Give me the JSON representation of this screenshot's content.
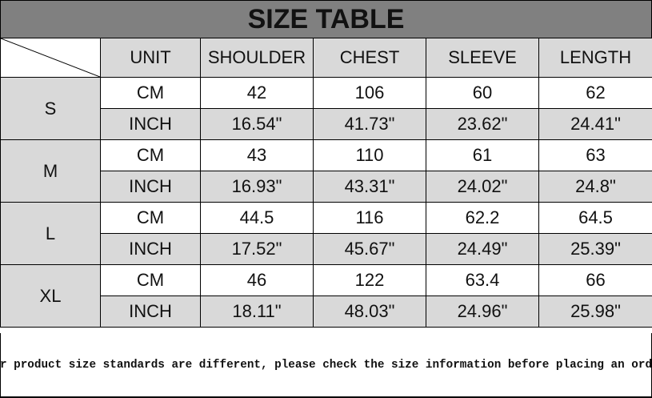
{
  "title": "SIZE TABLE",
  "headers": [
    "UNIT",
    "SHOULDER",
    "CHEST",
    "SLEEVE",
    "LENGTH"
  ],
  "sizes": [
    {
      "size": "S",
      "rows": [
        {
          "unit": "CM",
          "values": [
            "42",
            "106",
            "60",
            "62"
          ]
        },
        {
          "unit": "INCH",
          "values": [
            "16.54\"",
            "41.73\"",
            "23.62\"",
            "24.41\""
          ]
        }
      ]
    },
    {
      "size": "M",
      "rows": [
        {
          "unit": "CM",
          "values": [
            "43",
            "110",
            "61",
            "63"
          ]
        },
        {
          "unit": "INCH",
          "values": [
            "16.93\"",
            "43.31\"",
            "24.02\"",
            "24.8\""
          ]
        }
      ]
    },
    {
      "size": "L",
      "rows": [
        {
          "unit": "CM",
          "values": [
            "44.5",
            "116",
            "62.2",
            "64.5"
          ]
        },
        {
          "unit": "INCH",
          "values": [
            "17.52\"",
            "45.67\"",
            "24.49\"",
            "25.39\""
          ]
        }
      ]
    },
    {
      "size": "XL",
      "rows": [
        {
          "unit": "CM",
          "values": [
            "46",
            "122",
            "63.4",
            "66"
          ]
        },
        {
          "unit": "INCH",
          "values": [
            "18.11\"",
            "48.03\"",
            "24.96\"",
            "25.98\""
          ]
        }
      ]
    }
  ],
  "footer": "Our product size standards are different, please check the size information before placing an order",
  "colors": {
    "title_bg": "#808080",
    "cell_gray": "#d9d9d9"
  }
}
